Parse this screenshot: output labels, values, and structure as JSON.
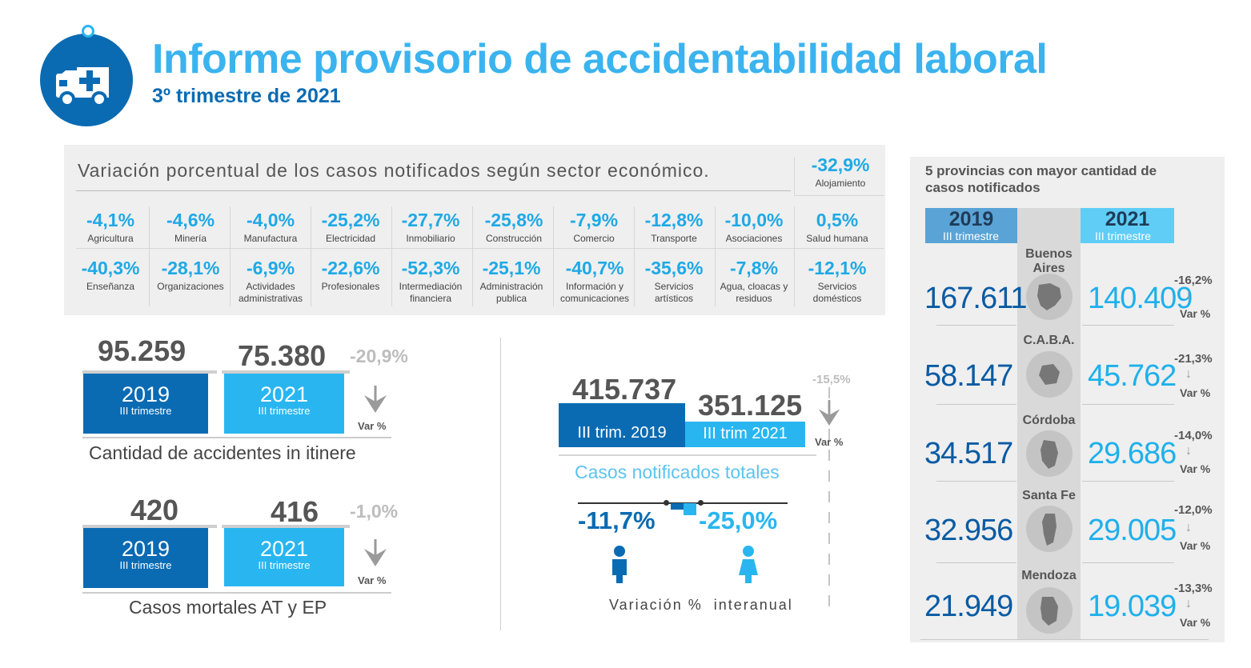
{
  "header": {
    "title": "Informe provisorio de accidentabilidad laboral",
    "subtitle": "3º trimestre de 2021",
    "logo_icon": "ambulance-icon"
  },
  "sectors": {
    "heading": "Variación porcentual de los casos notificados según sector económico.",
    "alojamiento": {
      "value": "-32,9%",
      "label": "Alojamiento"
    },
    "row1": [
      {
        "value": "-4,1%",
        "label": "Agricultura"
      },
      {
        "value": "-4,6%",
        "label": "Minería"
      },
      {
        "value": "-4,0%",
        "label": "Manufactura"
      },
      {
        "value": "-25,2%",
        "label": "Electricidad"
      },
      {
        "value": "-27,7%",
        "label": "Inmobiliario"
      },
      {
        "value": "-25,8%",
        "label": "Construcción"
      },
      {
        "value": "-7,9%",
        "label": "Comercio"
      },
      {
        "value": "-12,8%",
        "label": "Transporte"
      },
      {
        "value": "-10,0%",
        "label": "Asociaciones"
      },
      {
        "value": "0,5%",
        "label": "Salud humana"
      }
    ],
    "row2": [
      {
        "value": "-40,3%",
        "label": "Enseñanza"
      },
      {
        "value": "-28,1%",
        "label": "Organizaciones"
      },
      {
        "value": "-6,9%",
        "label": "Actividades administrativas"
      },
      {
        "value": "-22,6%",
        "label": "Profesionales"
      },
      {
        "value": "-52,3%",
        "label": "Intermediación financiera"
      },
      {
        "value": "-25,1%",
        "label": "Administración publica"
      },
      {
        "value": "-40,7%",
        "label": "Información y comunicaciones"
      },
      {
        "value": "-35,6%",
        "label": "Servicios artísticos"
      },
      {
        "value": "-7,8%",
        "label": "Agua, cloacas y residuos"
      },
      {
        "value": "-12,1%",
        "label": "Servicios domésticos"
      }
    ]
  },
  "itinere": {
    "v2019": "95.259",
    "v2021": "75.380",
    "pct": "-20,9%",
    "y2019": "2019",
    "y2021": "2021",
    "tri": "III trimestre",
    "var": "Var %",
    "caption": "Cantidad de accidentes in itinere"
  },
  "mortales": {
    "v2019": "420",
    "v2021": "416",
    "pct": "-1,0%",
    "y2019": "2019",
    "y2021": "2021",
    "tri": "III trimestre",
    "var": "Var %",
    "caption": "Casos mortales AT y EP"
  },
  "totales": {
    "v2019": "415.737",
    "v2021": "351.125",
    "label2019": "III trim. 2019",
    "label2021": "III trim 2021",
    "pct": "-15,5%",
    "var": "Var %",
    "caption": "Casos notificados totales",
    "male_pct": "-11,7%",
    "female_pct": "-25,0%",
    "variacion": "Variación %  interanual"
  },
  "provinces": {
    "title": "5 provincias con mayor cantidad de casos notificados",
    "y2019": "2019",
    "y2021": "2021",
    "tri": "III trimestre",
    "var": "Var %",
    "rows": [
      {
        "name": "Buenos Aires",
        "v2019": "167.611",
        "v2021": "140.409",
        "pct": "-16,2%"
      },
      {
        "name": "C.A.B.A.",
        "v2019": "58.147",
        "v2021": "45.762",
        "pct": "-21,3%"
      },
      {
        "name": "Córdoba",
        "v2019": "34.517",
        "v2021": "29.686",
        "pct": "-14,0%"
      },
      {
        "name": "Santa Fe",
        "v2019": "32.956",
        "v2021": "29.005",
        "pct": "-12,0%"
      },
      {
        "name": "Mendoza",
        "v2019": "21.949",
        "v2021": "19.039",
        "pct": "-13,3%"
      }
    ]
  },
  "colors": {
    "dark_blue": "#0a6bb3",
    "light_blue": "#29b6f0",
    "title_blue": "#3bb3ee",
    "panel_grey": "#efefef"
  }
}
